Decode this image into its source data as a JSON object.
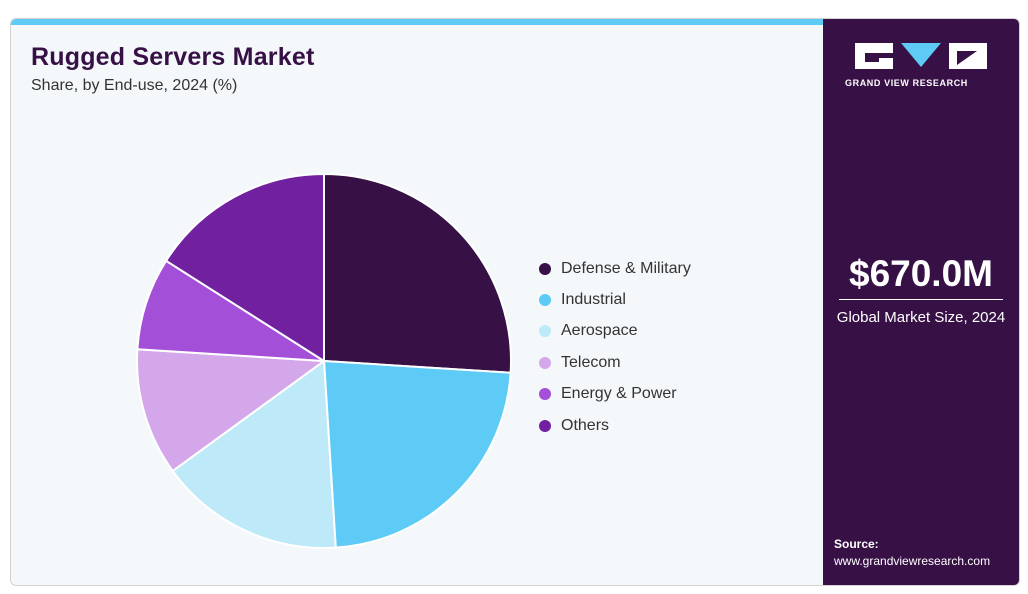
{
  "chart_data": {
    "type": "pie",
    "title": "Rugged Servers Market",
    "subtitle": "Share, by End-use, 2024 (%)",
    "categories": [
      "Defense & Military",
      "Industrial",
      "Aerospace",
      "Telecom",
      "Energy & Power",
      "Others"
    ],
    "values": [
      26,
      23,
      16,
      11,
      8,
      16
    ],
    "colors": [
      "#371046",
      "#5ecbf6",
      "#bde9f9",
      "#d4a7ea",
      "#a44fd8",
      "#7121a0"
    ],
    "legend_position": "right"
  },
  "sidebar": {
    "brand": "GRAND VIEW RESEARCH",
    "market_size": "$670.0M",
    "market_size_caption": "Global Market Size, 2024",
    "source_label": "Source:",
    "source_url": "www.grandviewresearch.com"
  }
}
